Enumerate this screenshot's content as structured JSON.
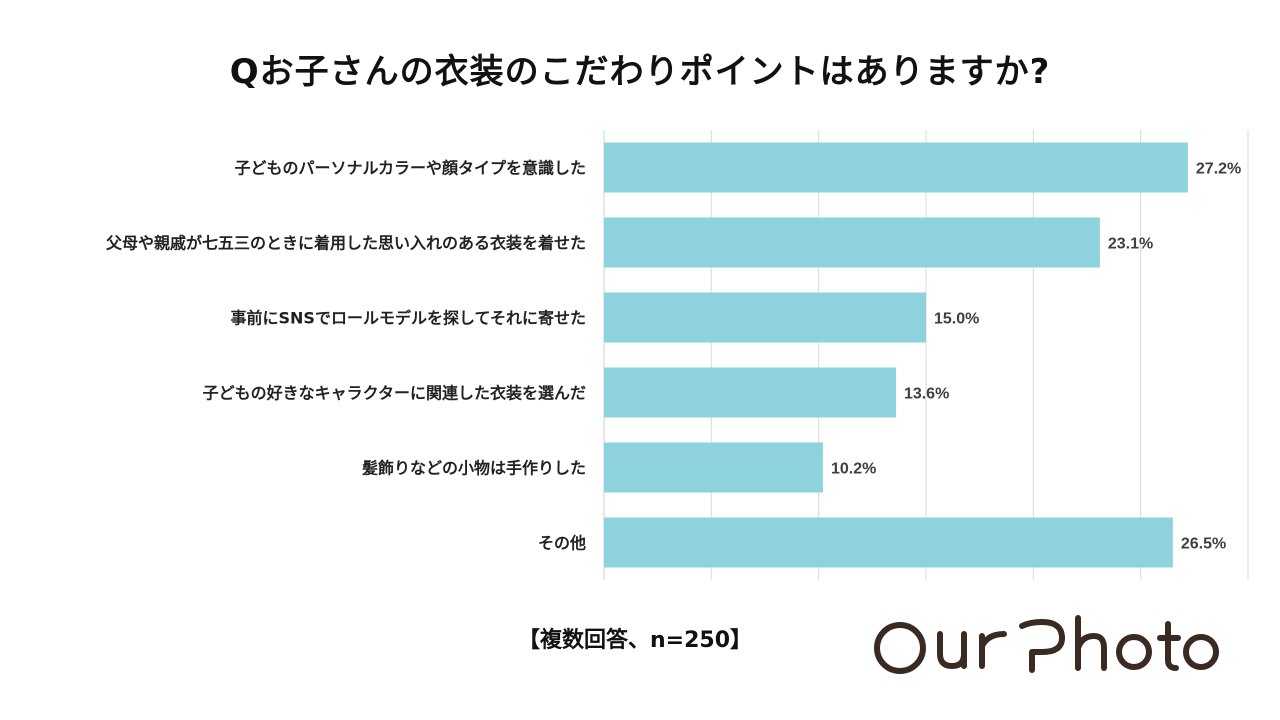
{
  "title": "Qお子さんの衣装のこだわりポイントはありますか?",
  "footnote": "【複数回答、n=250】",
  "logo_text": "OurPhoto",
  "colors": {
    "bar": "#8ED2DE",
    "grid": "#D9D9D9",
    "logo": "#3A2A22"
  },
  "chart_data": {
    "type": "bar",
    "orientation": "horizontal",
    "categories": [
      "子どものパーソナルカラーや顔タイプを意識した",
      "父母や親戚が七五三のときに着用した思い入れのある衣装を着せた",
      "事前にSNSでロールモデルを探してそれに寄せた",
      "子どもの好きなキャラクターに関連した衣装を選んだ",
      "髪飾りなどの小物は手作りした",
      "その他"
    ],
    "values": [
      27.2,
      23.1,
      15.0,
      13.6,
      10.2,
      26.5
    ],
    "value_labels": [
      "27.2%",
      "23.1%",
      "15.0%",
      "13.6%",
      "10.2%",
      "26.5%"
    ],
    "xlim": [
      0,
      30
    ],
    "grid": true,
    "legend": "none"
  }
}
